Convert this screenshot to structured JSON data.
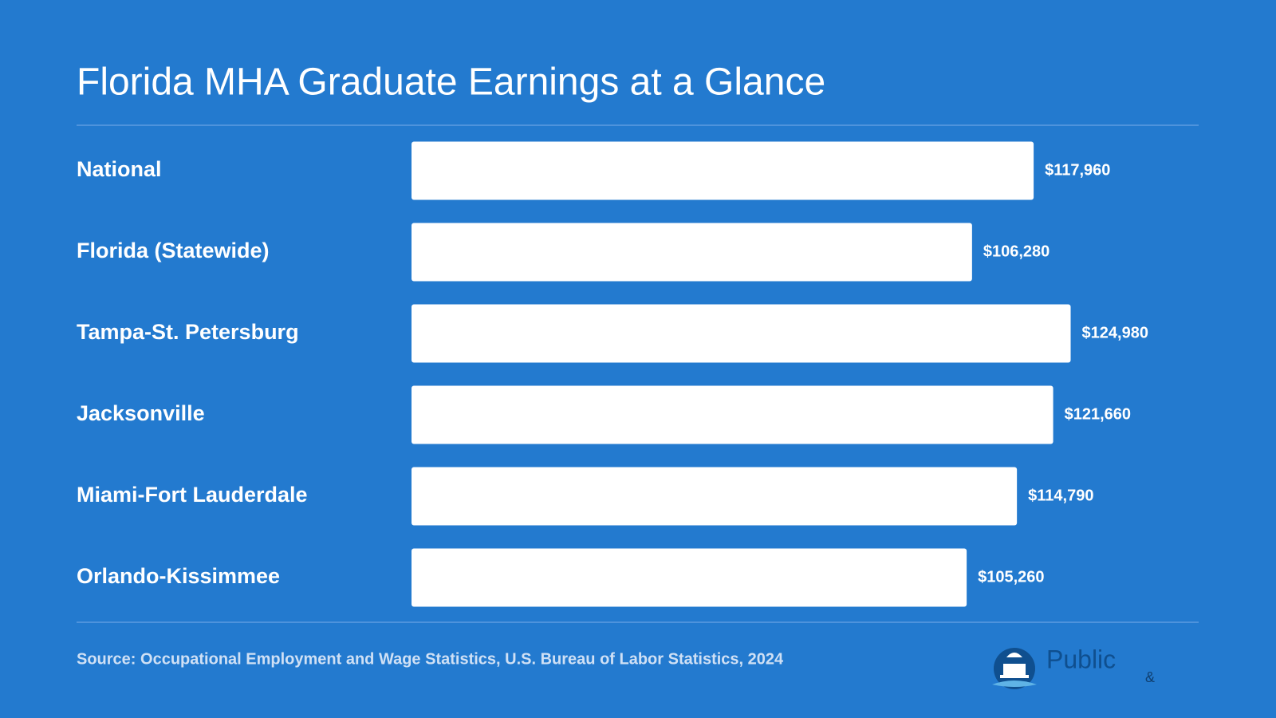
{
  "chart_data": {
    "type": "bar",
    "orientation": "horizontal",
    "title": "Florida MHA Graduate Earnings at a Glance",
    "categories": [
      "National",
      "Florida (Statewide)",
      "Tampa-St. Petersburg",
      "Jacksonville",
      "Miami-Fort Lauderdale",
      "Orlando-Kissimmee"
    ],
    "values": [
      117960,
      106280,
      124980,
      121660,
      114790,
      105260
    ],
    "value_labels": [
      "$117,960",
      "$106,280",
      "$124,980",
      "$121,660",
      "$114,790",
      "$105,260"
    ],
    "color": "#ffffff",
    "xlim": [
      0,
      150000
    ],
    "source": "Source: Occupational Employment and Wage Statistics, U.S. Bureau of Labor Statistics, 2024"
  },
  "logo": {
    "name": "Public",
    "amp": "&"
  }
}
